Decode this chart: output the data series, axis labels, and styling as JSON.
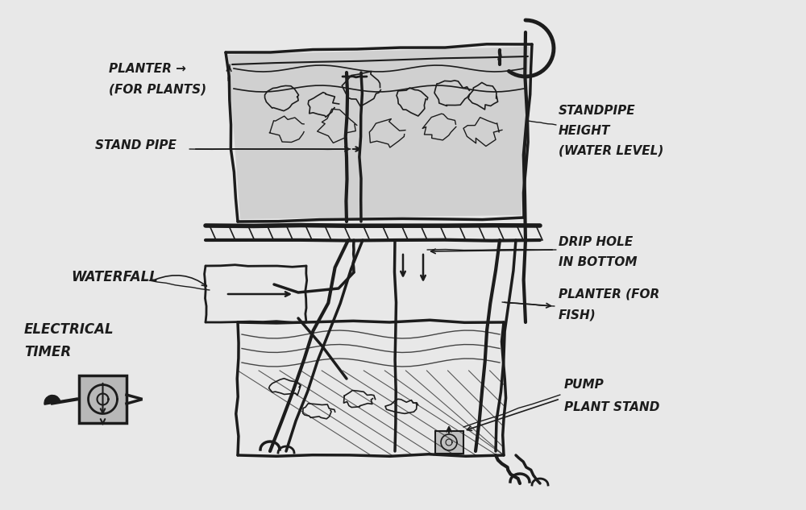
{
  "bg_color": "#e8e8e8",
  "ink_color": "#1c1c1c",
  "figsize": [
    10.0,
    6.33
  ],
  "dpi": 100,
  "labels": {
    "planter_plants_line1": "PLANTER →",
    "planter_plants_line2": "(FOR PLANTS)",
    "stand_pipe": "STAND PIPE",
    "standpipe_height_1": "STANDPIPE",
    "standpipe_height_2": "HEIGHT",
    "standpipe_height_3": "(WATER LEVEL)",
    "drip_hole_1": "DRIP HOLE",
    "drip_hole_2": "IN BOTTOM",
    "planter_fish_1": "PLANTER (FOR",
    "planter_fish_2": "FISH)",
    "waterfall": "WATERFALL",
    "electrical_1": "ELECTRICAL",
    "electrical_2": "TIMER",
    "pump": "PUMP",
    "plant_stand": "PLANT STAND"
  }
}
